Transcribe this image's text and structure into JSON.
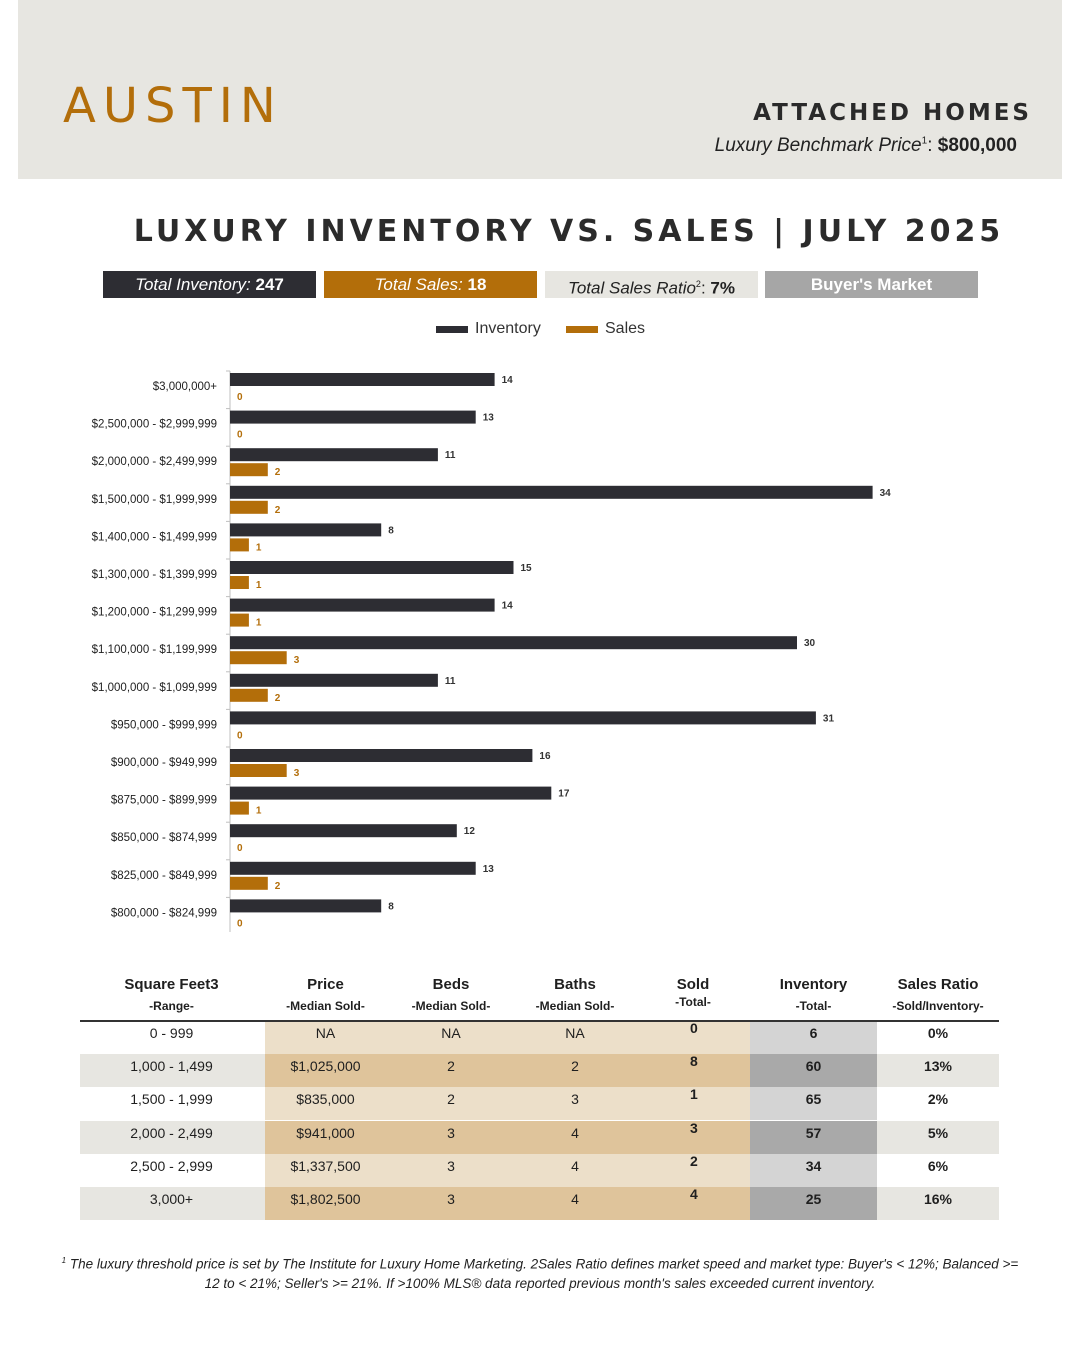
{
  "header": {
    "city": "AUSTIN",
    "property_type": "ATTACHED HOMES",
    "benchmark_label": "Luxury Benchmark Price",
    "benchmark_sup": "1",
    "benchmark_value": "$800,000"
  },
  "title": "LUXURY INVENTORY VS. SALES | JULY 2025",
  "stats": {
    "inventory_label": "Total Inventory:",
    "inventory_value": "247",
    "sales_label": "Total Sales:",
    "sales_value": "18",
    "ratio_label": "Total Sales Ratio",
    "ratio_sup": "2",
    "ratio_value": "7%",
    "market": "Buyer's Market"
  },
  "colors": {
    "inventory": "#2d2d33",
    "sales": "#b36e0a"
  },
  "chart_data": {
    "type": "bar",
    "orientation": "horizontal",
    "legend_position": "top",
    "categories": [
      "$3,000,000+",
      "$2,500,000 - $2,999,999",
      "$2,000,000 - $2,499,999",
      "$1,500,000 - $1,999,999",
      "$1,400,000 - $1,499,999",
      "$1,300,000 - $1,399,999",
      "$1,200,000 - $1,299,999",
      "$1,100,000 - $1,199,999",
      "$1,000,000 - $1,099,999",
      "$950,000 - $999,999",
      "$900,000 - $949,999",
      "$875,000 - $899,999",
      "$850,000 - $874,999",
      "$825,000 - $849,999",
      "$800,000 - $824,999"
    ],
    "series": [
      {
        "name": "Inventory",
        "values": [
          14,
          13,
          11,
          34,
          8,
          15,
          14,
          30,
          11,
          31,
          16,
          17,
          12,
          13,
          8
        ]
      },
      {
        "name": "Sales",
        "values": [
          0,
          0,
          2,
          2,
          1,
          1,
          1,
          3,
          2,
          0,
          3,
          1,
          0,
          2,
          0
        ]
      }
    ],
    "xlim": [
      0,
      36
    ]
  },
  "table": {
    "headers": [
      {
        "h1": "Square Feet3",
        "h2": "-Range-"
      },
      {
        "h1": "Price",
        "h2": "-Median Sold-"
      },
      {
        "h1": "Beds",
        "h2": "-Median Sold-"
      },
      {
        "h1": "Baths",
        "h2": "-Median Sold-"
      },
      {
        "h1": "Sold",
        "h2": "-Total-"
      },
      {
        "h1": "Inventory",
        "h2": "-Total-"
      },
      {
        "h1": "Sales Ratio",
        "h2": "-Sold/Inventory-"
      }
    ],
    "rows": [
      [
        "0 - 999",
        "NA",
        "NA",
        "NA",
        "0",
        "6",
        "0%"
      ],
      [
        "1,000 - 1,499",
        "$1,025,000",
        "2",
        "2",
        "8",
        "60",
        "13%"
      ],
      [
        "1,500 - 1,999",
        "$835,000",
        "2",
        "3",
        "1",
        "65",
        "2%"
      ],
      [
        "2,000 - 2,499",
        "$941,000",
        "3",
        "4",
        "3",
        "57",
        "5%"
      ],
      [
        "2,500 - 2,999",
        "$1,337,500",
        "3",
        "4",
        "2",
        "34",
        "6%"
      ],
      [
        "3,000+",
        "$1,802,500",
        "3",
        "4",
        "4",
        "25",
        "16%"
      ]
    ]
  },
  "footnote": {
    "sup": "1",
    "text": "The luxury threshold price is set by The Institute for Luxury Home Marketing. 2Sales Ratio defines market speed and market type: Buyer's < 12%; Balanced >= 12 to < 21%; Seller's >= 21%. If >100% MLS® data reported previous month's sales exceeded current inventory."
  }
}
